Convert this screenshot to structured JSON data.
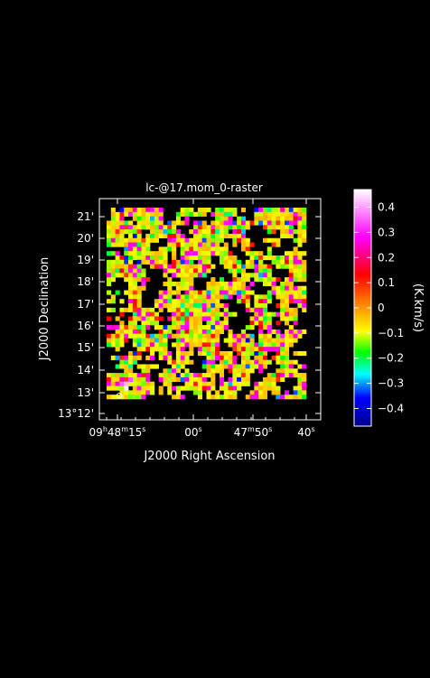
{
  "chart_data": {
    "type": "heatmap",
    "title": "lc-@17.mom_0-raster",
    "xlabel": "J2000 Right Ascension",
    "ylabel": "J2000 Declination",
    "colorbar_label": "(K.km/s)",
    "x_ticks": [
      {
        "pre": "09",
        "s1": "h",
        "mid": "48",
        "s2": "m",
        "post": "15",
        "s3": "s"
      },
      {
        "pre": "",
        "s1": "",
        "mid": "",
        "s2": "",
        "post": "00",
        "s3": "s"
      },
      {
        "pre": "",
        "s1": "",
        "mid": "47",
        "s2": "m",
        "post": "50",
        "s3": "s"
      },
      {
        "pre": "",
        "s1": "",
        "mid": "",
        "s2": "",
        "post": "40",
        "s3": "s"
      }
    ],
    "y_ticks": [
      "13°12'",
      "13'",
      "14'",
      "15'",
      "16'",
      "17'",
      "18'",
      "19'",
      "20'",
      "21'"
    ],
    "colorbar_ticks": [
      "0.4",
      "0.3",
      "0.2",
      "0.1",
      "0",
      "−0.1",
      "−0.2",
      "−0.3",
      "−0.4"
    ],
    "colorbar_tick_values": [
      0.4,
      0.3,
      0.2,
      0.1,
      0,
      -0.1,
      -0.2,
      -0.3,
      -0.4
    ],
    "colorbar_range": [
      -0.47,
      0.47
    ],
    "colormap": [
      "#00008b",
      "#0000ff",
      "#00ffff",
      "#00ff00",
      "#ffff00",
      "#ff8000",
      "#ff0000",
      "#ff00ff",
      "#ffffff"
    ],
    "colors": {
      "background": "#000000",
      "axes": "#ffffff",
      "text": "#ffffff",
      "blank_pixel": "#000000"
    },
    "grid": false,
    "map_nx": 46,
    "map_ny": 44,
    "map_values_note_free": true
  }
}
